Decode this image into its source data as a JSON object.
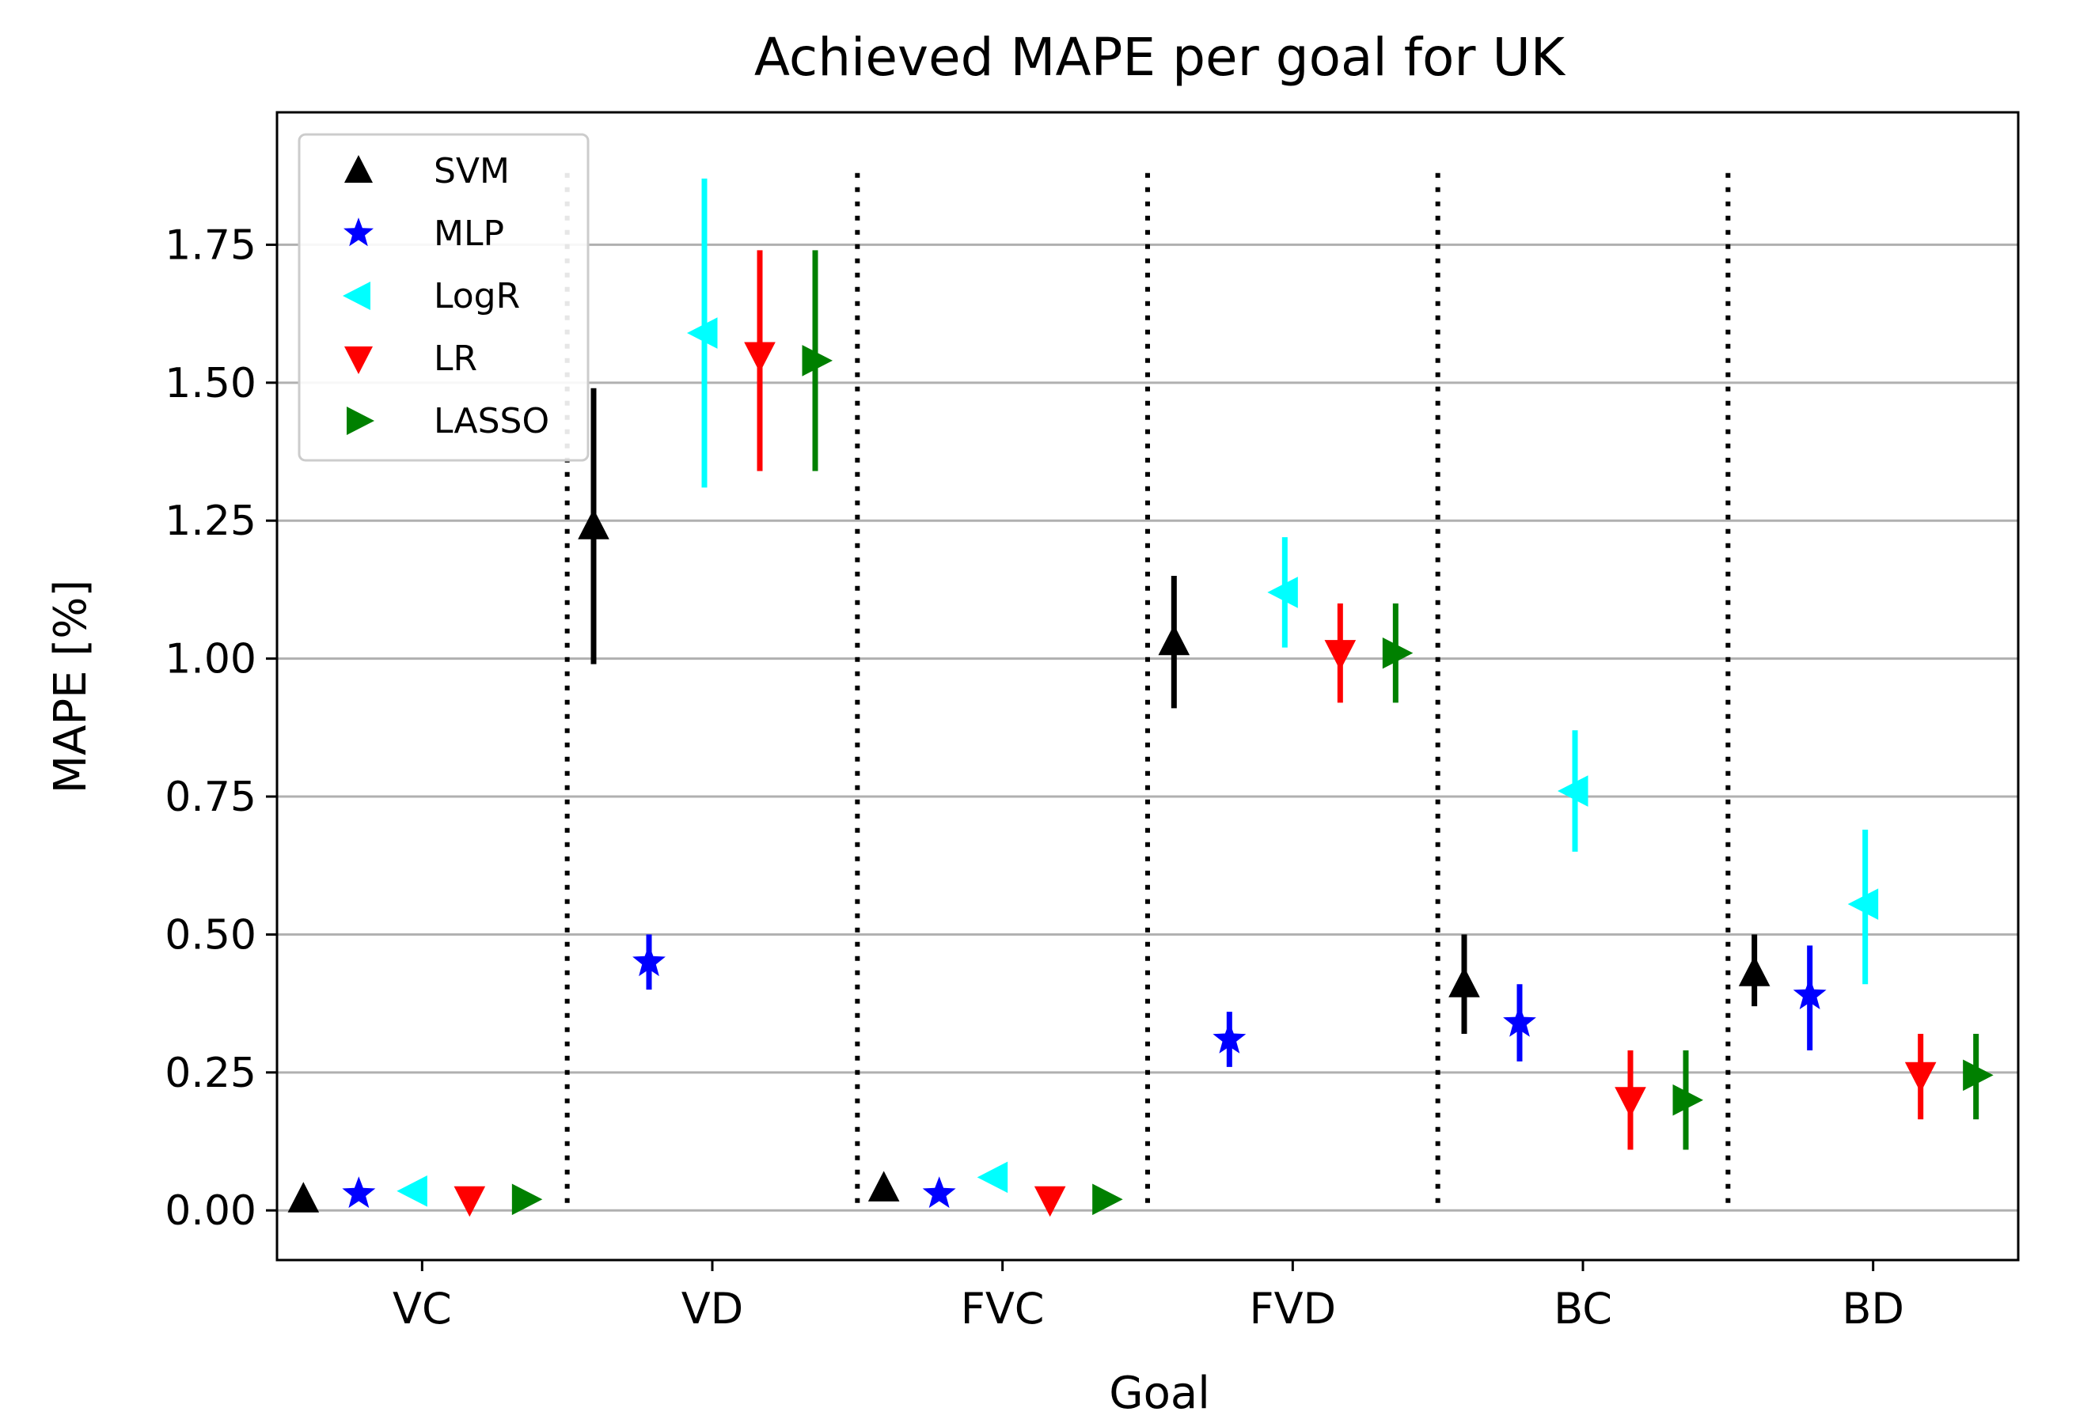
{
  "chart_data": {
    "type": "scatter",
    "title": "Achieved MAPE per goal for UK",
    "xlabel": "Goal",
    "ylabel": "MAPE [%]",
    "categories": [
      "VC",
      "VD",
      "FVC",
      "FVD",
      "BC",
      "BD"
    ],
    "ylim": [
      -0.09,
      1.99
    ],
    "yticks": [
      0.0,
      0.25,
      0.5,
      0.75,
      1.0,
      1.25,
      1.5,
      1.75
    ],
    "ytick_labels": [
      "0.00",
      "0.25",
      "0.50",
      "0.75",
      "1.00",
      "1.25",
      "1.50",
      "1.75"
    ],
    "grid": "horizontal",
    "legend_position": "top-left",
    "series": [
      {
        "name": "SVM",
        "marker": "triangle-up",
        "color": "#000000",
        "values": [
          0.02,
          1.24,
          0.04,
          1.03,
          0.41,
          0.43
        ],
        "err_low": [
          0.02,
          0.99,
          0.04,
          0.91,
          0.32,
          0.37
        ],
        "err_high": [
          0.02,
          1.49,
          0.04,
          1.15,
          0.5,
          0.5
        ]
      },
      {
        "name": "MLP",
        "marker": "star",
        "color": "#0000ff",
        "values": [
          0.03,
          0.45,
          0.03,
          0.31,
          0.34,
          0.39
        ],
        "err_low": [
          0.03,
          0.4,
          0.03,
          0.26,
          0.27,
          0.29
        ],
        "err_high": [
          0.03,
          0.5,
          0.03,
          0.36,
          0.41,
          0.48
        ]
      },
      {
        "name": "LogR",
        "marker": "triangle-left",
        "color": "#00ffff",
        "values": [
          0.035,
          1.59,
          0.06,
          1.12,
          0.76,
          0.555
        ],
        "err_low": [
          0.035,
          1.31,
          0.06,
          1.02,
          0.65,
          0.41
        ],
        "err_high": [
          0.035,
          1.87,
          0.06,
          1.22,
          0.87,
          0.69
        ]
      },
      {
        "name": "LR",
        "marker": "triangle-down",
        "color": "#ff0000",
        "values": [
          0.02,
          1.55,
          0.02,
          1.01,
          0.2,
          0.245
        ],
        "err_low": [
          0.02,
          1.34,
          0.02,
          0.92,
          0.11,
          0.165
        ],
        "err_high": [
          0.02,
          1.74,
          0.02,
          1.1,
          0.29,
          0.32
        ]
      },
      {
        "name": "LASSO",
        "marker": "triangle-right",
        "color": "#008000",
        "values": [
          0.02,
          1.54,
          0.02,
          1.01,
          0.2,
          0.245
        ],
        "err_low": [
          0.02,
          1.34,
          0.02,
          0.92,
          0.11,
          0.165
        ],
        "err_high": [
          0.02,
          1.74,
          0.02,
          1.1,
          0.29,
          0.32
        ]
      }
    ]
  }
}
